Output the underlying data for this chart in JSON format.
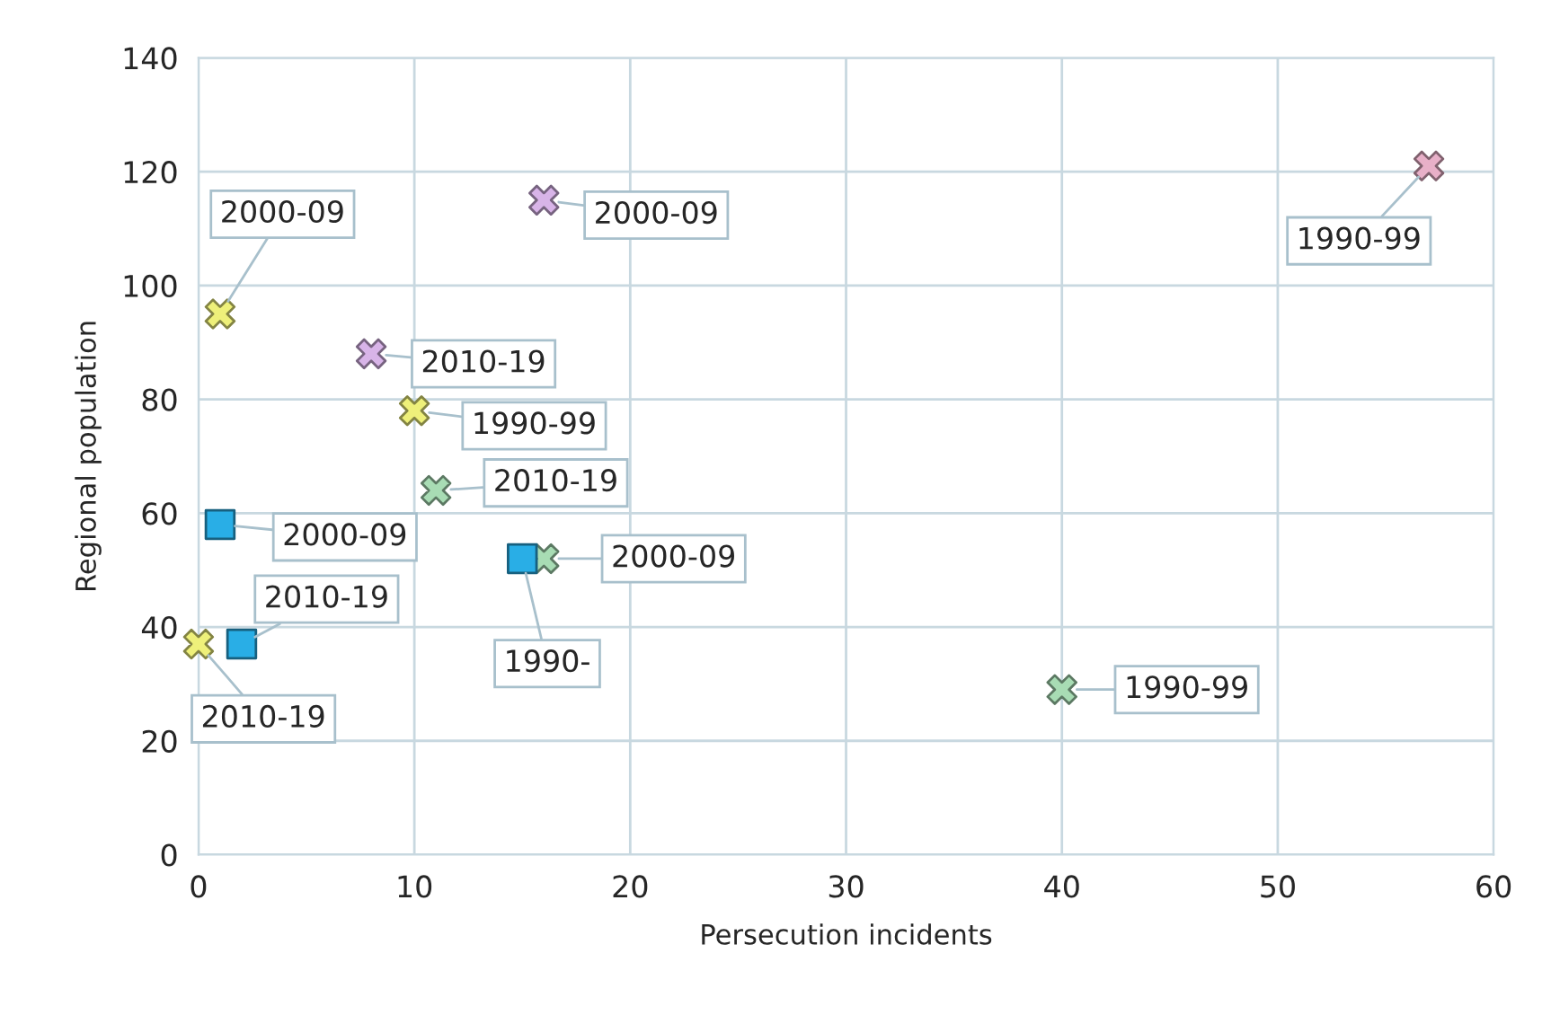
{
  "chart_data": {
    "type": "scatter",
    "xlabel": "Persecution incidents",
    "ylabel": "Regional population",
    "xlim": [
      0,
      60
    ],
    "ylim": [
      0,
      140
    ],
    "xticks": [
      0,
      10,
      20,
      30,
      40,
      50,
      60
    ],
    "yticks": [
      0,
      20,
      40,
      60,
      80,
      100,
      120,
      140
    ],
    "grid": true,
    "legend": false,
    "series": [
      {
        "color": "#e8b0c8",
        "marker": "cross",
        "x": [
          57
        ],
        "values": [
          121
        ]
      },
      {
        "color": "#d8b4e8",
        "marker": "cross",
        "x": [
          16,
          8
        ],
        "values": [
          115,
          88
        ]
      },
      {
        "color": "#eef07a",
        "marker": "cross",
        "x": [
          1,
          10,
          0
        ],
        "values": [
          95,
          78,
          37
        ]
      },
      {
        "color": "#a8dcb4",
        "marker": "cross",
        "x": [
          11,
          16,
          40
        ],
        "values": [
          64,
          52,
          29
        ]
      },
      {
        "color": "#29aee6",
        "marker": "square",
        "x": [
          1,
          2,
          15
        ],
        "values": [
          58,
          37,
          52
        ]
      }
    ],
    "annotations": [
      {
        "text": "1990-99",
        "x": 57,
        "y": 121
      },
      {
        "text": "2000-09",
        "x": 16,
        "y": 115
      },
      {
        "text": "2010-19",
        "x": 8,
        "y": 88
      },
      {
        "text": "2000-09",
        "x": 1,
        "y": 95
      },
      {
        "text": "1990-99",
        "x": 10,
        "y": 78
      },
      {
        "text": "2010-19",
        "x": 0,
        "y": 37
      },
      {
        "text": "2010-19",
        "x": 11,
        "y": 64
      },
      {
        "text": "2000-09",
        "x": 16,
        "y": 52
      },
      {
        "text": "1990-99",
        "x": 40,
        "y": 29
      },
      {
        "text": "2000-09",
        "x": 1,
        "y": 58
      },
      {
        "text": "2010-19",
        "x": 2,
        "y": 37
      },
      {
        "text": "1990-",
        "x": 15,
        "y": 52
      }
    ]
  }
}
